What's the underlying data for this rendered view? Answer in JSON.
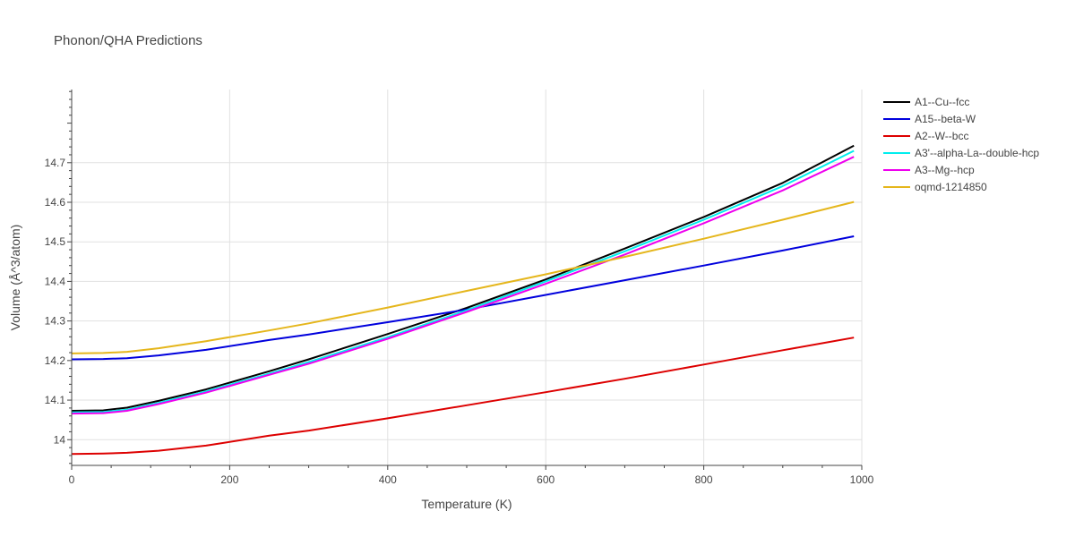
{
  "chart_data": {
    "type": "line",
    "title": "Phonon/QHA Predictions",
    "xlabel": "Temperature (K)",
    "ylabel": "Volume (Å^3/atom)",
    "xlim": [
      0,
      1000
    ],
    "ylim": [
      13.935,
      14.885
    ],
    "xticks": [
      0,
      200,
      400,
      600,
      800,
      1000
    ],
    "xtick_labels": [
      "0",
      "200",
      "400",
      "600",
      "800",
      "1000"
    ],
    "yticks": [
      14.0,
      14.1,
      14.2,
      14.3,
      14.4,
      14.5,
      14.6,
      14.7
    ],
    "ytick_labels": [
      "14",
      "14.1",
      "14.2",
      "14.3",
      "14.4",
      "14.5",
      "14.6",
      "14.7"
    ],
    "grid": true,
    "legend_position": "right",
    "x": [
      0,
      40,
      70,
      110,
      170,
      250,
      300,
      400,
      500,
      600,
      700,
      800,
      900,
      990
    ],
    "series": [
      {
        "name": "A1--Cu--fcc",
        "color": "#000000",
        "values": [
          14.073,
          14.074,
          14.081,
          14.098,
          14.127,
          14.173,
          14.203,
          14.267,
          14.333,
          14.405,
          14.483,
          14.563,
          14.649,
          14.743
        ]
      },
      {
        "name": "A15--beta-W",
        "color": "#0000dd",
        "values": [
          14.203,
          14.204,
          14.206,
          14.213,
          14.227,
          14.252,
          14.266,
          14.297,
          14.329,
          14.366,
          14.403,
          14.44,
          14.478,
          14.514
        ]
      },
      {
        "name": "A2--W--bcc",
        "color": "#dd0000",
        "values": [
          13.964,
          13.965,
          13.967,
          13.972,
          13.985,
          14.01,
          14.023,
          14.054,
          14.087,
          14.12,
          14.154,
          14.19,
          14.226,
          14.258
        ]
      },
      {
        "name": "A3'--alpha-La--double-hcp",
        "color": "#00eeee",
        "values": [
          14.069,
          14.07,
          14.076,
          14.093,
          14.122,
          14.167,
          14.196,
          14.259,
          14.327,
          14.4,
          14.476,
          14.556,
          14.641,
          14.73
        ]
      },
      {
        "name": "A3--Mg--hcp",
        "color": "#ee00ee",
        "values": [
          14.066,
          14.067,
          14.073,
          14.09,
          14.119,
          14.164,
          14.192,
          14.255,
          14.323,
          14.394,
          14.468,
          14.547,
          14.63,
          14.715
        ]
      },
      {
        "name": "oqmd-1214850",
        "color": "#e5b61c",
        "values": [
          14.218,
          14.219,
          14.222,
          14.231,
          14.249,
          14.276,
          14.294,
          14.334,
          14.376,
          14.418,
          14.462,
          14.508,
          14.556,
          14.601
        ]
      }
    ]
  }
}
